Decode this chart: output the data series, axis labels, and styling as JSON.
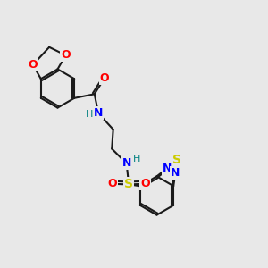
{
  "bg_color": "#e8e8e8",
  "bond_color": "#1a1a1a",
  "O_color": "#ff0000",
  "N_color": "#008080",
  "N_blue_color": "#0000ff",
  "S_yellow_color": "#cccc00",
  "lw": 1.5,
  "xlim": [
    0,
    10
  ],
  "ylim": [
    0,
    10
  ]
}
